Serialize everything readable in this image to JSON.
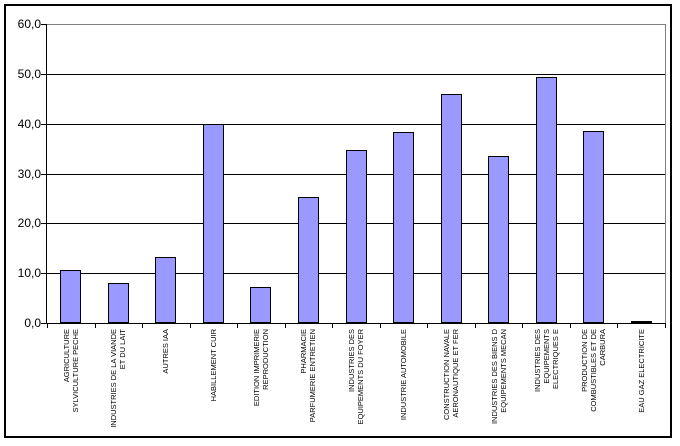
{
  "chart_data": {
    "type": "bar",
    "title": "",
    "legend": "none",
    "grid": true,
    "categories": [
      "AGRICULTURE SYLVICULTURE PECHE",
      "INDUSTRIES DE LA VIANDE ET DU LAIT",
      "AUTRES IAA",
      "HABILLEMENT CUIR",
      "EDITION IMPRIMERIE REPRODUCTION",
      "PHARMACIE PARFUMERIE ENTRETIEN",
      "INDUSTRIES DES EQUIPEMENTS DU FOYER",
      "INDUSTRIE AUTOMOBILE",
      "CONSTRUCTION NAVALE AERONAUTIQUE ET FER",
      "INDUSTRIES DES BIENS D EQUIPEMENTS MECAN",
      "INDUSTRIES DES EQUIPEMENTS ELECTRIQUES E",
      "PRODUCTION DE COMBUSTIBLES ET DE CARBURA",
      "EAU GAZ ELECTRICITE"
    ],
    "category_label_lines": [
      [
        "AGRICULTURE",
        "SYLVICULTURE PECHE"
      ],
      [
        "INDUSTRIES DE LA VIANDE",
        "ET DU LAIT"
      ],
      [
        "AUTRES IAA"
      ],
      [
        "HABILLEMENT CUIR"
      ],
      [
        "EDITION IMPRIMERIE",
        "REPRODUCTION"
      ],
      [
        "PHARMACIE",
        "PARFUMERIE ENTRETIEN"
      ],
      [
        "INDUSTRIES DES",
        "EQUIPEMENTS DU FOYER"
      ],
      [
        "INDUSTRIE AUTOMOBILE"
      ],
      [
        "CONSTRUCTION NAVALE",
        "AERONAUTIQUE ET FER"
      ],
      [
        "INDUSTRIES DES BIENS D",
        "EQUIPEMENTS MECAN"
      ],
      [
        "INDUSTRIES DES",
        "EQUIPEMENTS",
        "ELECTRIQUES E"
      ],
      [
        "PRODUCTION DE",
        "COMBUSTIBLES ET DE",
        "CARBURA"
      ],
      [
        "EAU GAZ ELECTRICITE"
      ]
    ],
    "values": [
      10.7,
      8.1,
      13.3,
      39.9,
      7.2,
      25.3,
      34.8,
      38.3,
      45.9,
      33.6,
      49.3,
      38.5,
      0.4
    ],
    "y_axis": {
      "min": 0,
      "max": 60,
      "step": 10,
      "tick_labels": [
        "0,0",
        "10,0",
        "20,0",
        "30,0",
        "40,0",
        "50,0",
        "60,0"
      ],
      "decimal_separator": ","
    },
    "colors": {
      "bar_fill": "#9999FF",
      "bar_border": "#000000",
      "gridline": "#000000",
      "plot_border": "#808080",
      "chart_border": "#000000",
      "background": "#FFFFFF",
      "text": "#000000"
    }
  }
}
